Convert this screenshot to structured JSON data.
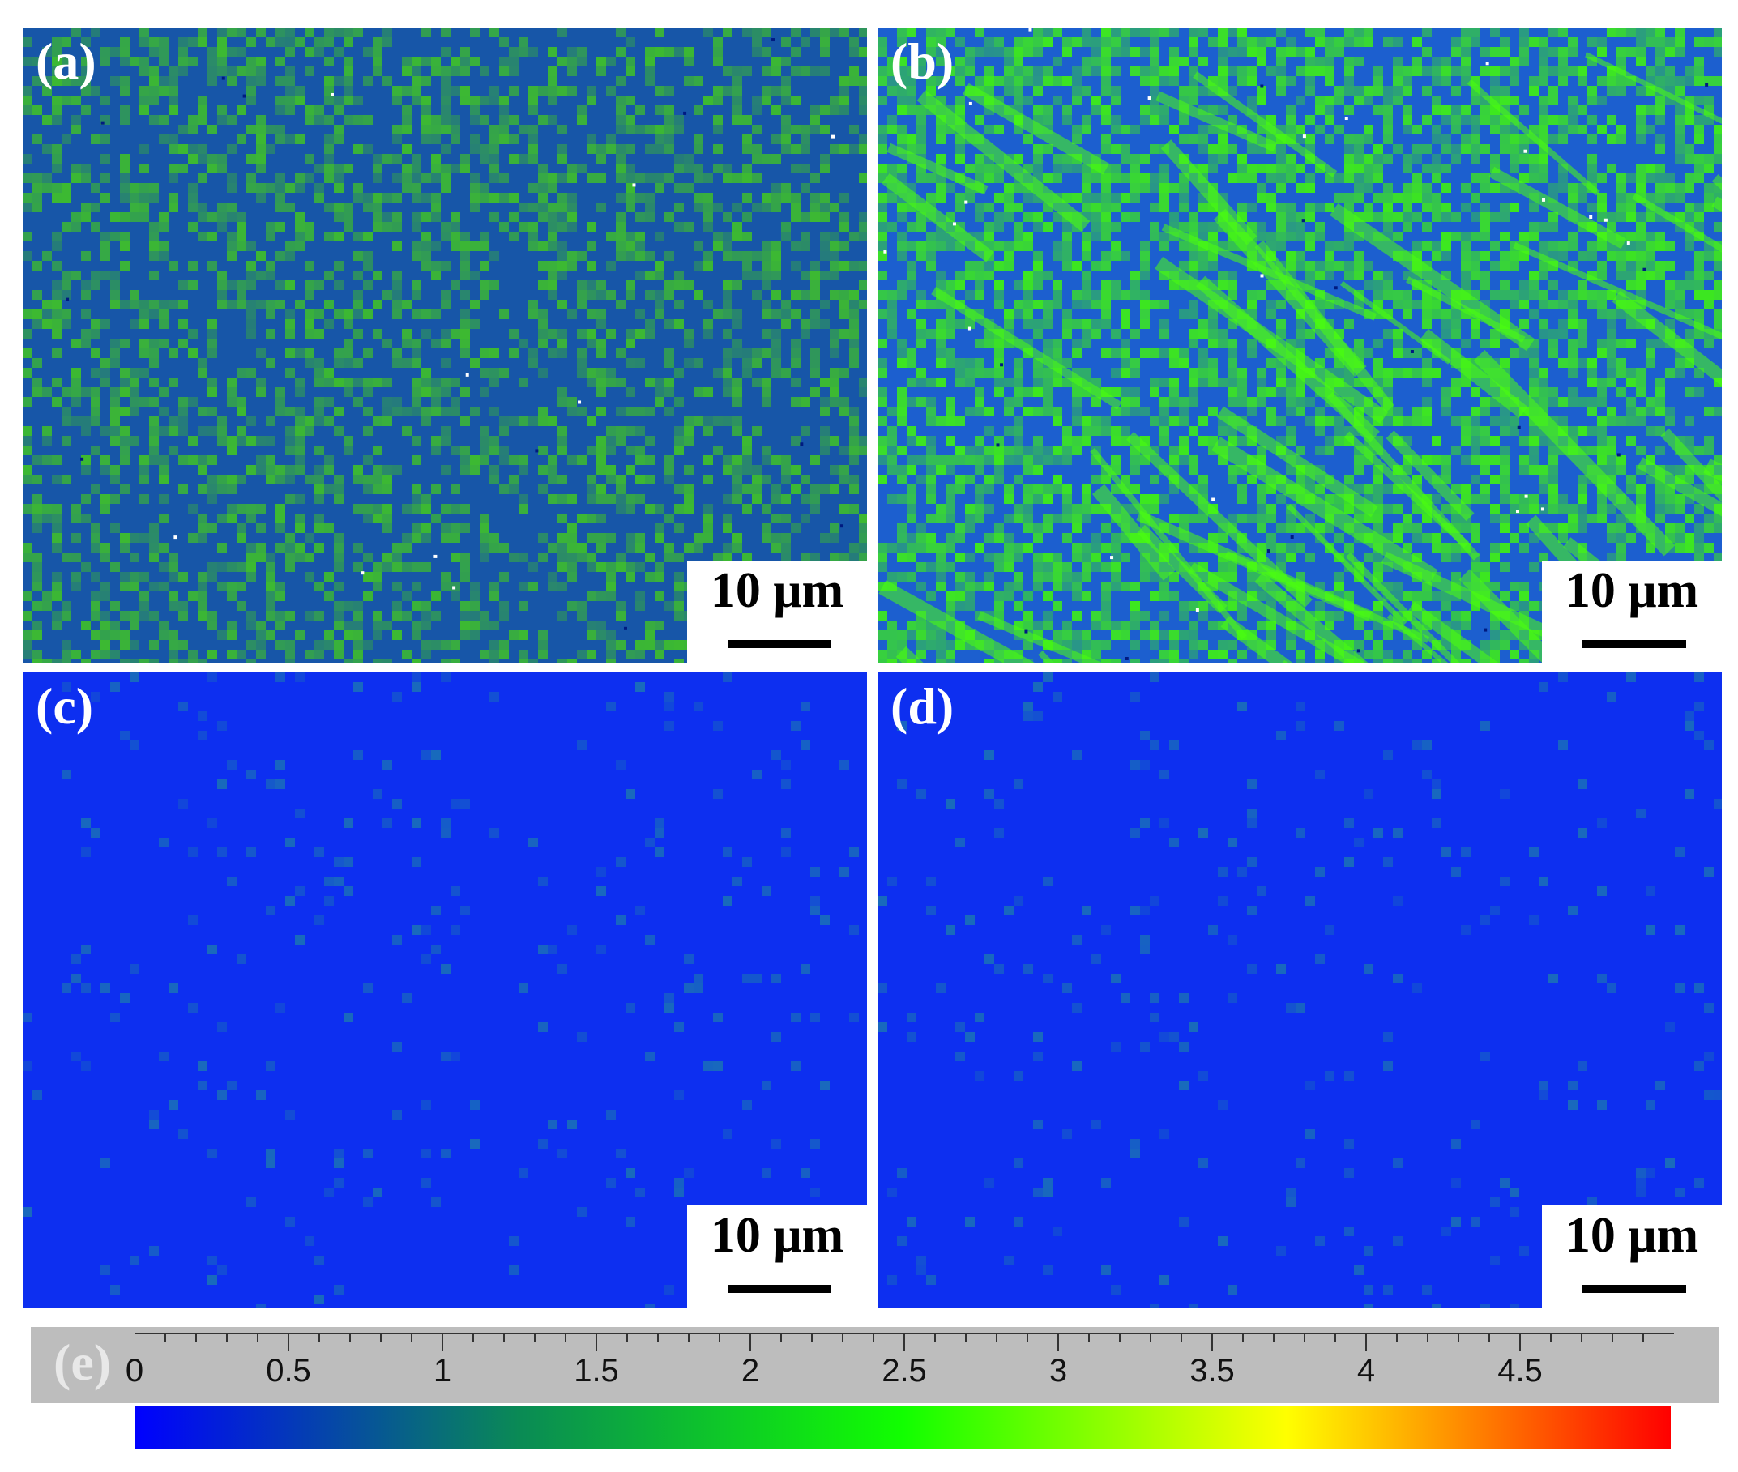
{
  "panels": [
    {
      "id": "a",
      "label": "(a)",
      "scale_text": "10 μm",
      "base": "#1756a8",
      "hi": "#3fbf2a",
      "hi_density": 0.42,
      "bright_density": 0.01
    },
    {
      "id": "b",
      "label": "(b)",
      "scale_text": "10 μm",
      "base": "#1c5fcf",
      "hi": "#3fef15",
      "hi_density": 0.55,
      "bright_density": 0.02
    },
    {
      "id": "c",
      "label": "(c)",
      "scale_text": "10 μm",
      "base": "#0d2ff0",
      "hi": "#1a6fb8",
      "hi_density": 0.05,
      "bright_density": 0.0
    },
    {
      "id": "d",
      "label": "(d)",
      "scale_text": "10 μm",
      "base": "#0d2ff0",
      "hi": "#1a6fb8",
      "hi_density": 0.05,
      "bright_density": 0.0
    }
  ],
  "colorbar": {
    "label": "(e)",
    "min": 0,
    "max": 5,
    "ticks": [
      "0",
      "0.5",
      "1",
      "1.5",
      "2",
      "2.5",
      "3",
      "3.5",
      "4",
      "4.5"
    ],
    "colors": [
      "#0000ff",
      "#0a8a55",
      "#11ff00",
      "#ffff00",
      "#ff0000"
    ]
  }
}
